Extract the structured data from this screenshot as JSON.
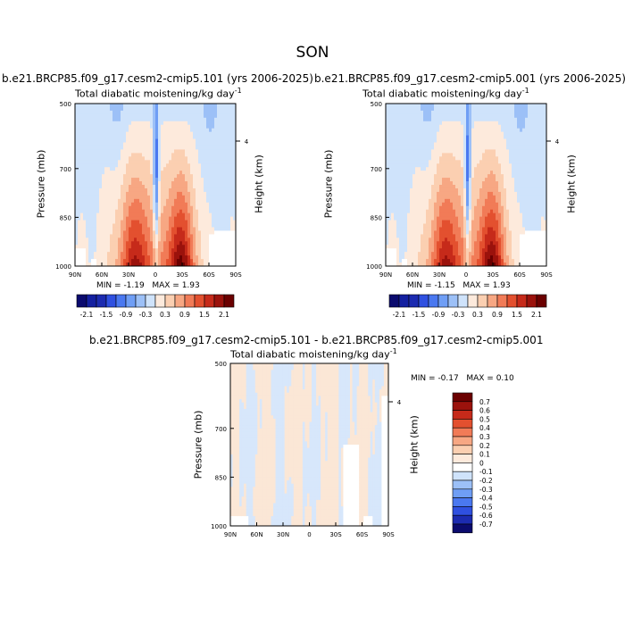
{
  "page_title": "SON",
  "chart_data": [
    {
      "type": "heatmap",
      "run_title": "b.e21.BRCP85.f09_g17.cesm2-cmip5.101 (yrs 2006-2025)",
      "title": "Total diabatic moistening/kg day",
      "title_exponent": "-1",
      "xlabel": "",
      "ylabel": "Pressure (mb)",
      "y2label": "Height (km)",
      "x_ticks": [
        "90N",
        "60N",
        "30N",
        "0",
        "30S",
        "60S",
        "90S"
      ],
      "y_ticks": [
        "500",
        "700",
        "850",
        "1000"
      ],
      "y2_ticks": [
        "4"
      ],
      "xlim": [
        90,
        -90
      ],
      "ylim": [
        1000,
        500
      ],
      "min_label": "MIN =",
      "min_value": "-1.19",
      "max_label": "MAX =",
      "max_value": "1.93",
      "colorbar_labels": [
        "-2.1",
        "-1.5",
        "-0.9",
        "-0.3",
        "0.3",
        "0.9",
        "1.5",
        "2.1"
      ],
      "colorbar_levels": [
        -2.1,
        -1.8,
        -1.5,
        -1.2,
        -0.9,
        -0.6,
        -0.3,
        0,
        0.3,
        0.6,
        0.9,
        1.2,
        1.5,
        1.8,
        2.1
      ]
    },
    {
      "type": "heatmap",
      "run_title": "b.e21.BRCP85.f09_g17.cesm2-cmip5.001 (yrs 2006-2025)",
      "title": "Total diabatic moistening/kg day",
      "title_exponent": "-1",
      "xlabel": "",
      "ylabel": "Pressure (mb)",
      "y2label": "Height (km)",
      "x_ticks": [
        "90N",
        "60N",
        "30N",
        "0",
        "30S",
        "60S",
        "90S"
      ],
      "y_ticks": [
        "500",
        "700",
        "850",
        "1000"
      ],
      "y2_ticks": [
        "4"
      ],
      "xlim": [
        90,
        -90
      ],
      "ylim": [
        1000,
        500
      ],
      "min_label": "MIN =",
      "min_value": "-1.15",
      "max_label": "MAX =",
      "max_value": "1.93",
      "colorbar_labels": [
        "-2.1",
        "-1.5",
        "-0.9",
        "-0.3",
        "0.3",
        "0.9",
        "1.5",
        "2.1"
      ],
      "colorbar_levels": [
        -2.1,
        -1.8,
        -1.5,
        -1.2,
        -0.9,
        -0.6,
        -0.3,
        0,
        0.3,
        0.6,
        0.9,
        1.2,
        1.5,
        1.8,
        2.1
      ]
    },
    {
      "type": "heatmap",
      "run_title": "b.e21.BRCP85.f09_g17.cesm2-cmip5.101 - b.e21.BRCP85.f09_g17.cesm2-cmip5.001",
      "title": "Total diabatic moistening/kg day",
      "title_exponent": "-1",
      "xlabel": "",
      "ylabel": "Pressure (mb)",
      "y2label": "Height (km)",
      "x_ticks": [
        "90N",
        "60N",
        "30N",
        "0",
        "30S",
        "60S",
        "90S"
      ],
      "y_ticks": [
        "500",
        "700",
        "850",
        "1000"
      ],
      "y2_ticks": [
        "4"
      ],
      "xlim": [
        90,
        -90
      ],
      "ylim": [
        1000,
        500
      ],
      "min_label": "MIN =",
      "min_value": "-0.17",
      "max_label": "MAX =",
      "max_value": "0.10",
      "colorbar_labels": [
        "0.7",
        "0.6",
        "0.5",
        "0.4",
        "0.3",
        "0.2",
        "0.1",
        "0",
        "-0.1",
        "-0.2",
        "-0.3",
        "-0.4",
        "-0.5",
        "-0.6",
        "-0.7"
      ]
    }
  ],
  "colors": {
    "neg": [
      "#0b0b6e",
      "#1c2bb0",
      "#2f50e0",
      "#4a78f0",
      "#6f9ef5",
      "#9cc0f7",
      "#cfe3fb"
    ],
    "pos": [
      "#fdeadc",
      "#fbcfb1",
      "#f7a783",
      "#f17b57",
      "#e3502f",
      "#c62a1a",
      "#9b120c",
      "#6b0000"
    ],
    "zero": "#f6f3ee",
    "frame": "#000000"
  }
}
